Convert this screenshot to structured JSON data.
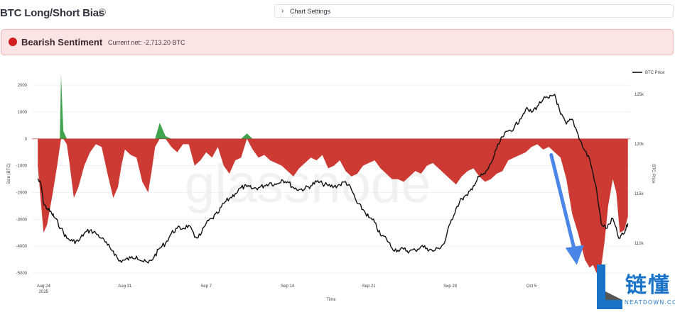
{
  "page": {
    "title": "BTC Long/Short Bias",
    "help_icon": "question-circle-icon",
    "chart_settings_label": "Chart Settings",
    "expander_icon": "chevron-right-icon"
  },
  "sentiment": {
    "icon": "red-circle-icon",
    "icon_color": "#d21f1f",
    "headline": "Bearish Sentiment",
    "current_net": "Current net: -2,713.20 BTC"
  },
  "logo": {
    "chars": "链懂",
    "subtitle": "NEATDOWN.COM",
    "icon": "neatdown-logo-icon"
  },
  "chart_data": {
    "type": "area",
    "xlabel": "Time",
    "ylabel": "Size (BTC)",
    "y2label": "BTC Price",
    "watermark": "glassnode",
    "legend": {
      "placement": "top-right",
      "entries": [
        "BTC Price"
      ]
    },
    "x_ticks": [
      "Aug 24\n2025",
      "Aug 31",
      "Sep 7",
      "Sep 14",
      "Sep 21",
      "Sep 28",
      "Oct 5"
    ],
    "x_tick_day": [
      0,
      7,
      14,
      21,
      28,
      35,
      42
    ],
    "y_ticks": [
      "2000",
      "1000",
      "0",
      "-1000",
      "-2000",
      "-3000",
      "-4000",
      "-5000"
    ],
    "y_tick_values": [
      2000,
      1000,
      0,
      -1000,
      -2000,
      -3000,
      -4000,
      -5000
    ],
    "ylim": [
      -5000,
      2400
    ],
    "y2_ticks": [
      "125k",
      "120k",
      "115k",
      "110k"
    ],
    "y2_tick_values": [
      125000,
      120000,
      115000,
      110000
    ],
    "y2lim": [
      107000,
      127000
    ],
    "colors": {
      "positive": "#3fa34d",
      "negative": "#cd3a33",
      "price": "#111111",
      "arrow": "#4a86e8"
    },
    "net_position": {
      "day": [
        -0.5,
        -0.3,
        0,
        0.3,
        0.8,
        1.2,
        1.4,
        1.5,
        1.7,
        2,
        2.2,
        2.4,
        2.6,
        3,
        3.5,
        4,
        4.5,
        5,
        5.5,
        6,
        6.4,
        6.7,
        7,
        7.5,
        8,
        8.5,
        9,
        9.3,
        9.6,
        10,
        10.5,
        11,
        11.5,
        12,
        12.5,
        13,
        13.5,
        14,
        14.5,
        15,
        15.5,
        16,
        16.5,
        17,
        17.5,
        18,
        18.5,
        19,
        19.5,
        20,
        20.5,
        21,
        21.5,
        22,
        22.5,
        23,
        23.5,
        24,
        24.5,
        25,
        25.5,
        26,
        26.5,
        27,
        27.5,
        28,
        28.5,
        29,
        29.5,
        30,
        30.5,
        31,
        31.5,
        32,
        32.5,
        33,
        33.5,
        34,
        34.5,
        35,
        35.5,
        36,
        36.5,
        37,
        37.5,
        38,
        38.5,
        39,
        39.5,
        40,
        40.5,
        41,
        41.5,
        42,
        42.5,
        43,
        43.5,
        44,
        44.5,
        45,
        45.5,
        46,
        46.3,
        46.6,
        47,
        47.3,
        47.6,
        48,
        48.3,
        48.6,
        49,
        49.3,
        49.6,
        50,
        50.3
      ],
      "net": [
        -1000,
        -2000,
        -3500,
        -3200,
        -2000,
        -900,
        -300,
        2400,
        300,
        -200,
        -800,
        -1500,
        -2200,
        -1800,
        -1000,
        -500,
        -200,
        -300,
        -1300,
        -2200,
        -1800,
        -1000,
        -400,
        -600,
        -700,
        -1600,
        -2000,
        -1200,
        -300,
        600,
        100,
        -300,
        -500,
        -200,
        -200,
        -1000,
        -800,
        -500,
        -700,
        -300,
        -1000,
        -1300,
        -800,
        -700,
        200,
        -400,
        -700,
        -600,
        -800,
        -900,
        -1000,
        -1200,
        -1400,
        -1100,
        -900,
        -700,
        -800,
        -600,
        -1100,
        -1000,
        -800,
        -1200,
        -1400,
        -1300,
        -1000,
        -900,
        -800,
        -1100,
        -1300,
        -1500,
        -1500,
        -1600,
        -1400,
        -1200,
        -1300,
        -1000,
        -900,
        -1100,
        -1300,
        -1500,
        -1700,
        -1400,
        -1200,
        -1100,
        -1400,
        -1600,
        -1500,
        -1300,
        -1200,
        -800,
        -700,
        -600,
        -500,
        -300,
        -200,
        -400,
        -300,
        -500,
        -700,
        -1500,
        -2800,
        -3500,
        -4000,
        -4500,
        -4800,
        -4700,
        -5000,
        -4800,
        -3800,
        -2500,
        -1500,
        -2000,
        -3500,
        -3400,
        -2900
      ]
    },
    "btc_price": {
      "day": [
        -0.5,
        -0.2,
        0,
        0.3,
        0.7,
        1,
        1.5,
        2,
        2.5,
        3,
        3.5,
        4,
        4.5,
        5,
        5.5,
        6,
        6.5,
        7,
        7.5,
        8,
        8.5,
        9,
        9.5,
        10,
        10.5,
        11,
        11.5,
        12,
        12.5,
        13,
        13.5,
        14,
        14.5,
        15,
        15.5,
        16,
        16.5,
        17,
        17.5,
        18,
        18.5,
        19,
        19.5,
        20,
        20.5,
        21,
        21.5,
        22,
        22.5,
        23,
        23.5,
        24,
        24.5,
        25,
        25.5,
        26,
        26.5,
        27,
        27.5,
        28,
        28.5,
        29,
        29.5,
        30,
        30.5,
        31,
        31.5,
        32,
        32.5,
        33,
        33.5,
        34,
        34.5,
        35,
        35.5,
        36,
        36.5,
        37,
        37.5,
        38,
        38.5,
        39,
        39.5,
        40,
        40.5,
        41,
        41.5,
        42,
        42.5,
        43,
        43.5,
        44,
        44.5,
        45,
        45.5,
        46,
        46.5,
        47,
        47.5,
        48,
        48.5,
        49,
        49.5,
        50,
        50.3
      ],
      "price": [
        116500,
        115800,
        114000,
        113500,
        113000,
        112500,
        111500,
        110500,
        110200,
        110200,
        111000,
        111300,
        111000,
        110500,
        109800,
        109200,
        108200,
        108300,
        108500,
        108700,
        108200,
        108000,
        108600,
        109500,
        110000,
        111000,
        111500,
        111500,
        111800,
        110600,
        110800,
        112000,
        112500,
        113000,
        114000,
        114500,
        115000,
        115600,
        115700,
        115500,
        115600,
        115800,
        116100,
        115900,
        116400,
        116200,
        115600,
        115400,
        115500,
        115800,
        116200,
        116000,
        115800,
        115700,
        115900,
        116200,
        115400,
        114000,
        113400,
        112600,
        112100,
        110800,
        110500,
        109500,
        109300,
        109400,
        109200,
        109300,
        109700,
        109500,
        109200,
        109500,
        110000,
        112000,
        113500,
        114500,
        114800,
        115800,
        116700,
        117000,
        118000,
        119500,
        120700,
        121300,
        121600,
        122500,
        123500,
        123200,
        123800,
        124500,
        124600,
        125000,
        123000,
        122000,
        122500,
        121000,
        119500,
        118500,
        116000,
        112000,
        111500,
        112500,
        110500,
        111000,
        112000
      ]
    },
    "arrow": {
      "from": [
        43.7,
        -600
      ],
      "to": [
        45.9,
        -4700
      ]
    }
  }
}
